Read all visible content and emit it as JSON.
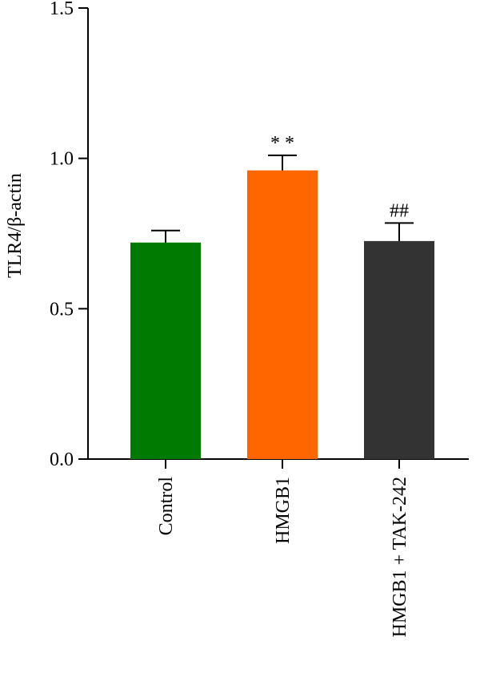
{
  "chart_data": {
    "type": "bar",
    "title": "",
    "xlabel": "",
    "ylabel": "TLR4/β-actin",
    "ylim": [
      0,
      1.5
    ],
    "yticks": [
      "0.0",
      "0.5",
      "1.0",
      "1.5"
    ],
    "ytick_values": [
      0,
      0.5,
      1.0,
      1.5
    ],
    "categories": [
      "Control",
      "HMGB1",
      "HMGB1 + TAK-242"
    ],
    "values": [
      0.72,
      0.96,
      0.725
    ],
    "errors": [
      0.04,
      0.05,
      0.06
    ],
    "annotations": [
      "",
      "* *",
      "##"
    ],
    "colors": [
      "#007a00",
      "#ff6600",
      "#333333"
    ],
    "grid": false,
    "legend": "none"
  }
}
